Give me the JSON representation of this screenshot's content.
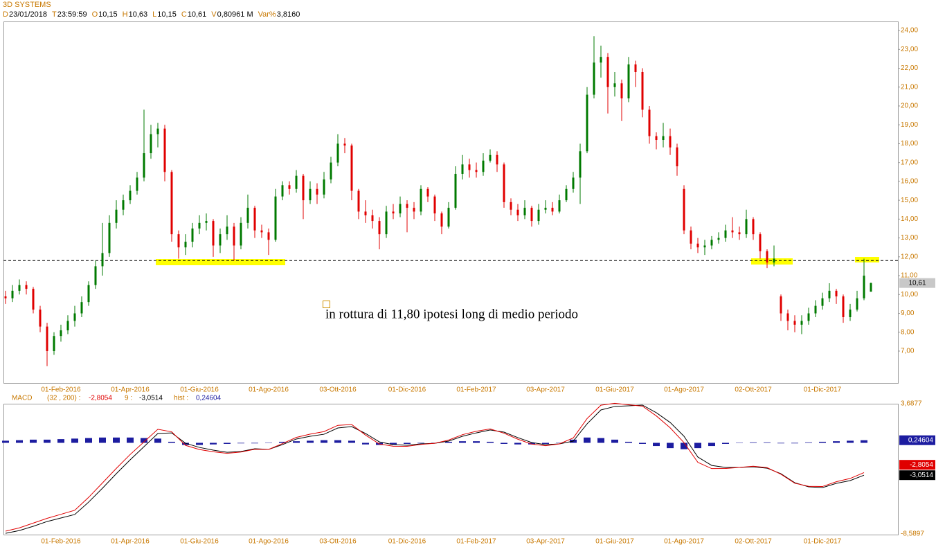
{
  "chart_data": [
    {
      "type": "candlestick",
      "title": "3D SYSTEMS",
      "info": [
        {
          "label": "D",
          "value": "23/01/2018"
        },
        {
          "label": "T",
          "value": "23:59:59"
        },
        {
          "label": "O",
          "value": "10,15"
        },
        {
          "label": "H",
          "value": "10,63"
        },
        {
          "label": "L",
          "value": "10,15"
        },
        {
          "label": "C",
          "value": "10,61"
        },
        {
          "label": "V",
          "value": "0,80961 M"
        },
        {
          "label": "Var%",
          "value": "3,8160"
        }
      ],
      "categories": [
        null,
        null,
        null,
        null,
        null,
        null,
        null,
        null,
        "01-Feb-2016",
        null,
        null,
        null,
        null,
        null,
        null,
        null,
        null,
        null,
        "01-Apr-2016",
        null,
        null,
        null,
        null,
        null,
        null,
        null,
        null,
        null,
        "01-Giu-2016",
        null,
        null,
        null,
        null,
        null,
        null,
        null,
        null,
        null,
        "01-Ago-2016",
        null,
        null,
        null,
        null,
        null,
        null,
        null,
        null,
        null,
        "03-Ott-2016",
        null,
        null,
        null,
        null,
        null,
        null,
        null,
        null,
        null,
        "01-Dic-2016",
        null,
        null,
        null,
        null,
        null,
        null,
        null,
        null,
        null,
        "01-Feb-2017",
        null,
        null,
        null,
        null,
        null,
        null,
        null,
        null,
        null,
        "03-Apr-2017",
        null,
        null,
        null,
        null,
        null,
        null,
        null,
        null,
        null,
        "01-Giu-2017",
        null,
        null,
        null,
        null,
        null,
        null,
        null,
        null,
        null,
        "01-Ago-2017",
        null,
        null,
        null,
        null,
        null,
        null,
        null,
        null,
        null,
        "02-Ott-2017",
        null,
        null,
        null,
        null,
        null,
        null,
        null,
        null,
        null,
        "01-Dic-2017",
        null,
        null,
        null,
        null,
        null,
        null,
        null
      ],
      "open": [
        9.9,
        9.8,
        10.2,
        10.5,
        10.3,
        9.2,
        8.3,
        7.0,
        7.8,
        8.1,
        8.6,
        9.0,
        9.6,
        10.5,
        11.5,
        12.2,
        13.8,
        14.5,
        15.0,
        15.5,
        16.2,
        17.5,
        18.5,
        18.8,
        16.5,
        13.2,
        12.5,
        12.8,
        13.5,
        13.8,
        13.9,
        12.6,
        13.2,
        13.6,
        12.6,
        13.8,
        14.6,
        13.4,
        13.3,
        12.9,
        15.2,
        15.8,
        15.6,
        16.3,
        15.0,
        15.6,
        15.3,
        16.1,
        17.0,
        18.0,
        17.9,
        15.5,
        14.4,
        14.2,
        13.9,
        13.2,
        14.4,
        14.3,
        14.8,
        14.6,
        14.4,
        15.6,
        15.2,
        14.3,
        13.6,
        14.6,
        16.4,
        16.9,
        16.6,
        16.5,
        17.1,
        17.4,
        16.9,
        14.9,
        14.5,
        14.2,
        14.6,
        13.9,
        14.5,
        14.6,
        14.4,
        15.0,
        15.6,
        16.2,
        17.6,
        20.6,
        22.3,
        22.6,
        21.0,
        21.2,
        20.4,
        22.2,
        21.8,
        19.8,
        18.4,
        18.2,
        18.4,
        17.8,
        15.6,
        13.4,
        12.7,
        12.5,
        12.6,
        12.9,
        13.0,
        13.4,
        13.3,
        13.2,
        14.0,
        13.2,
        12.3,
        11.7,
        9.9,
        9.0,
        8.6,
        8.4,
        8.6,
        9.0,
        9.4,
        9.8,
        10.2,
        9.9,
        8.8,
        9.2,
        9.8,
        10.15
      ],
      "high": [
        10.2,
        10.5,
        10.8,
        10.7,
        10.4,
        9.4,
        8.5,
        8.0,
        8.4,
        8.9,
        9.4,
        9.9,
        10.7,
        11.8,
        13.8,
        14.2,
        15.0,
        15.3,
        15.8,
        16.5,
        19.8,
        19.0,
        19.1,
        19.0,
        16.6,
        13.4,
        13.2,
        13.8,
        14.2,
        14.3,
        14.0,
        13.5,
        14.2,
        13.8,
        14.1,
        15.3,
        14.7,
        13.7,
        13.5,
        15.6,
        16.0,
        16.0,
        16.6,
        16.4,
        16.0,
        15.9,
        16.5,
        17.3,
        18.5,
        18.3,
        18.0,
        15.6,
        15.0,
        14.5,
        14.1,
        14.7,
        14.8,
        15.2,
        15.0,
        14.9,
        15.8,
        15.7,
        15.3,
        14.4,
        14.9,
        16.8,
        17.4,
        17.2,
        17.0,
        17.5,
        17.7,
        17.6,
        17.0,
        15.1,
        14.8,
        15.0,
        14.7,
        14.8,
        15.0,
        14.9,
        15.3,
        15.8,
        16.5,
        18.0,
        21.0,
        23.7,
        23.2,
        22.8,
        21.8,
        21.4,
        22.6,
        22.4,
        22.0,
        20.0,
        18.6,
        19.1,
        18.8,
        18.0,
        15.8,
        13.6,
        13.0,
        12.9,
        13.1,
        13.3,
        13.7,
        14.1,
        13.6,
        14.5,
        14.1,
        13.3,
        12.4,
        12.6,
        10.0,
        9.2,
        8.9,
        8.9,
        9.3,
        9.7,
        10.1,
        10.6,
        10.3,
        10.0,
        9.5,
        10.2,
        11.9,
        10.63
      ],
      "low": [
        9.5,
        9.6,
        10.0,
        10.0,
        9.0,
        8.0,
        6.2,
        6.8,
        7.5,
        7.9,
        8.3,
        8.8,
        9.4,
        10.3,
        11.0,
        12.0,
        13.5,
        14.2,
        14.8,
        15.3,
        16.0,
        17.2,
        17.8,
        16.0,
        12.8,
        11.9,
        12.1,
        12.5,
        13.2,
        13.4,
        12.0,
        12.2,
        12.9,
        11.8,
        12.4,
        13.5,
        13.0,
        13.0,
        12.1,
        12.8,
        15.0,
        15.3,
        15.4,
        14.0,
        14.8,
        14.8,
        15.1,
        15.9,
        16.8,
        17.5,
        15.0,
        14.0,
        13.8,
        13.5,
        12.4,
        13.0,
        14.0,
        14.1,
        13.3,
        14.0,
        14.2,
        14.9,
        13.9,
        13.2,
        13.5,
        14.5,
        16.1,
        16.2,
        16.2,
        16.3,
        17.0,
        16.5,
        14.6,
        14.2,
        13.9,
        14.0,
        13.6,
        13.7,
        14.3,
        14.2,
        14.3,
        14.9,
        15.4,
        14.8,
        17.5,
        20.4,
        21.5,
        19.6,
        20.5,
        19.2,
        20.2,
        21.0,
        19.4,
        18.0,
        17.7,
        17.8,
        17.4,
        16.3,
        13.2,
        12.4,
        12.2,
        12.1,
        12.4,
        12.7,
        12.8,
        13.0,
        12.9,
        13.0,
        12.9,
        11.9,
        11.4,
        11.5,
        8.6,
        8.1,
        8.0,
        7.9,
        8.4,
        8.8,
        9.2,
        9.6,
        9.5,
        8.5,
        8.6,
        9.1,
        9.7,
        10.15
      ],
      "close": [
        9.8,
        10.2,
        10.5,
        10.3,
        9.2,
        8.3,
        7.0,
        7.8,
        8.1,
        8.6,
        9.0,
        9.6,
        10.5,
        11.5,
        12.2,
        13.8,
        14.5,
        15.0,
        15.5,
        16.2,
        17.5,
        18.5,
        18.8,
        16.5,
        13.2,
        12.5,
        12.8,
        13.5,
        13.8,
        13.9,
        12.6,
        13.2,
        13.6,
        12.6,
        13.8,
        14.6,
        13.4,
        13.3,
        12.9,
        15.2,
        15.8,
        15.6,
        16.3,
        15.0,
        15.6,
        15.3,
        16.1,
        17.0,
        18.0,
        17.9,
        15.5,
        14.4,
        14.2,
        13.9,
        13.2,
        14.4,
        14.3,
        14.8,
        14.6,
        14.4,
        15.6,
        15.2,
        14.3,
        13.6,
        14.6,
        16.4,
        16.9,
        16.6,
        16.5,
        17.1,
        17.4,
        16.9,
        14.9,
        14.5,
        14.2,
        14.6,
        13.9,
        14.5,
        14.6,
        14.4,
        15.0,
        15.6,
        16.2,
        17.6,
        20.6,
        22.3,
        22.6,
        21.0,
        21.2,
        20.4,
        22.2,
        21.8,
        19.8,
        18.4,
        18.2,
        18.4,
        17.8,
        16.8,
        13.4,
        12.7,
        12.5,
        12.6,
        12.9,
        13.0,
        13.4,
        13.3,
        13.2,
        14.0,
        13.2,
        12.3,
        11.7,
        11.9,
        9.0,
        8.6,
        8.4,
        8.6,
        9.0,
        9.4,
        9.8,
        10.2,
        9.9,
        8.8,
        9.2,
        9.8,
        11.0,
        10.61
      ],
      "up_color": "#007a00",
      "down_color": "#e00000",
      "ylim": [
        5.31,
        24.48
      ],
      "yticks": [
        {
          "value": 24,
          "label": "24,00"
        },
        {
          "value": 23,
          "label": "23,00"
        },
        {
          "value": 22,
          "label": "22,00"
        },
        {
          "value": 21,
          "label": "21,00"
        },
        {
          "value": 20,
          "label": "20,00"
        },
        {
          "value": 19,
          "label": "19,00"
        },
        {
          "value": 18,
          "label": "18,00"
        },
        {
          "value": 17,
          "label": "17,00"
        },
        {
          "value": 16,
          "label": "16,00"
        },
        {
          "value": 15,
          "label": "15,00"
        },
        {
          "value": 14,
          "label": "14,00"
        },
        {
          "value": 13,
          "label": "13,00"
        },
        {
          "value": 12,
          "label": "12,00"
        },
        {
          "value": 11,
          "label": "11,00"
        },
        {
          "value": 10,
          "label": "10,00"
        },
        {
          "value": 9,
          "label": "9,00"
        },
        {
          "value": 8,
          "label": "8,00"
        },
        {
          "value": 7,
          "label": "7,00"
        }
      ],
      "hline": 11.8,
      "last_price": {
        "value": 10.61,
        "label": "10,61"
      },
      "annotation": "in rottura di 11,80 ipotesi long di medio periodo"
    },
    {
      "type": "macd",
      "categories": [
        null,
        null,
        null,
        null,
        "01-Feb-2016",
        null,
        null,
        null,
        null,
        "01-Apr-2016",
        null,
        null,
        null,
        null,
        "01-Giu-2016",
        null,
        null,
        null,
        null,
        "01-Ago-2016",
        null,
        null,
        null,
        null,
        "03-Ott-2016",
        null,
        null,
        null,
        null,
        "01-Dic-2016",
        null,
        null,
        null,
        null,
        "01-Feb-2017",
        null,
        null,
        null,
        null,
        "03-Apr-2017",
        null,
        null,
        null,
        null,
        "01-Giu-2017",
        null,
        null,
        null,
        null,
        "01-Ago-2017",
        null,
        null,
        null,
        null,
        "02-Ott-2017",
        null,
        null,
        null,
        null,
        "01-Dic-2017",
        null,
        null,
        null
      ],
      "series": [
        {
          "name": "MACD",
          "params": "(32 , 200) :",
          "color": "#e00000",
          "last_label": "-2,8054",
          "values": [
            -8.33,
            -8.02,
            -7.57,
            -7.12,
            -6.74,
            -6.36,
            -5.14,
            -3.78,
            -2.41,
            -1.1,
            0.09,
            1.28,
            1.04,
            -0.24,
            -0.63,
            -0.84,
            -0.99,
            -0.87,
            -0.61,
            -0.62,
            -0.07,
            0.51,
            0.82,
            1.06,
            1.65,
            1.73,
            0.73,
            -0.11,
            -0.32,
            -0.33,
            -0.15,
            -0.04,
            0.26,
            0.77,
            1.09,
            1.31,
            0.91,
            0.34,
            -0.12,
            -0.27,
            -0.1,
            0.46,
            2.29,
            3.55,
            3.73,
            3.59,
            3.46,
            2.54,
            1.42,
            0.02,
            -1.84,
            -2.43,
            -2.42,
            -2.32,
            -2.21,
            -2.34,
            -2.96,
            -3.81,
            -4.1,
            -4.12,
            -3.67,
            -3.36,
            -2.8054
          ]
        },
        {
          "name": "9 :",
          "color": "#000000",
          "last_label": "-3,0514",
          "values": [
            -8.53,
            -8.27,
            -7.87,
            -7.42,
            -7.09,
            -6.76,
            -5.59,
            -4.28,
            -2.91,
            -1.6,
            -0.36,
            0.88,
            0.94,
            -0.04,
            -0.43,
            -0.69,
            -0.89,
            -0.82,
            -0.56,
            -0.62,
            -0.17,
            0.36,
            0.62,
            0.81,
            1.4,
            1.53,
            0.88,
            0.09,
            -0.17,
            -0.23,
            -0.1,
            -0.04,
            0.16,
            0.62,
            0.94,
            1.21,
            1.01,
            0.49,
            0.03,
            -0.17,
            -0.1,
            0.16,
            1.79,
            3.1,
            3.43,
            3.49,
            3.56,
            2.84,
            1.92,
            0.62,
            -1.34,
            -2.13,
            -2.32,
            -2.32,
            -2.26,
            -2.39,
            -2.91,
            -3.76,
            -4.15,
            -4.22,
            -3.82,
            -3.56,
            -3.0514
          ]
        },
        {
          "name": "hist :",
          "color": "#1c1ca0",
          "last_label": "0,24604",
          "values": [
            0.2,
            0.25,
            0.3,
            0.3,
            0.35,
            0.4,
            0.45,
            0.5,
            0.5,
            0.5,
            0.45,
            0.4,
            0.1,
            -0.2,
            -0.2,
            -0.15,
            -0.1,
            -0.05,
            -0.05,
            0.0,
            0.1,
            0.15,
            0.2,
            0.25,
            0.25,
            0.2,
            -0.15,
            -0.2,
            -0.15,
            -0.1,
            -0.05,
            0.0,
            0.1,
            0.15,
            0.15,
            0.1,
            -0.1,
            -0.15,
            -0.15,
            -0.1,
            0.0,
            0.3,
            0.5,
            0.45,
            0.3,
            0.1,
            -0.1,
            -0.3,
            -0.5,
            -0.6,
            -0.5,
            -0.3,
            -0.1,
            0.0,
            0.05,
            0.05,
            -0.05,
            -0.05,
            0.05,
            0.1,
            0.15,
            0.2,
            0.24604
          ]
        }
      ],
      "ylim": [
        -8.5897,
        3.6877
      ],
      "yticks": [
        {
          "value": 3.6877,
          "label": "3,6877"
        },
        {
          "value": -8.5897,
          "label": "-8,5897"
        }
      ]
    }
  ]
}
